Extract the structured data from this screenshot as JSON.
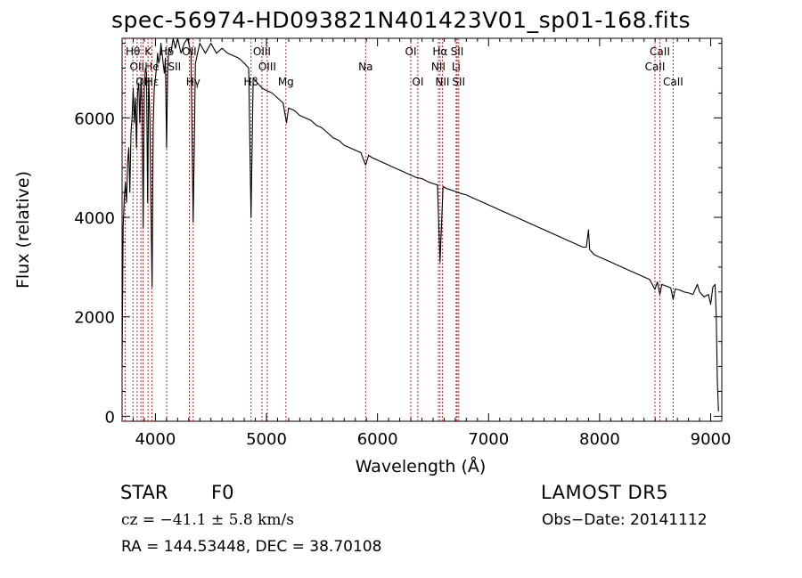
{
  "chart_data": {
    "type": "line",
    "title": "spec-56974-HD093821N401423V01_sp01-168.fits",
    "xlabel": "Wavelength (Å)",
    "ylabel": "Flux (relative)",
    "xlim": [
      3700,
      9100
    ],
    "ylim": [
      -100,
      7600
    ],
    "x_ticks": [
      "4000",
      "5000",
      "6000",
      "7000",
      "8000",
      "9000"
    ],
    "y_ticks": [
      "0",
      "2000",
      "4000",
      "6000"
    ],
    "grid": false,
    "series": [
      {
        "values": [
          [
            3700,
            1000
          ],
          [
            3710,
            3800
          ],
          [
            3720,
            4400
          ],
          [
            3730,
            4700
          ],
          [
            3740,
            4300
          ],
          [
            3750,
            5100
          ],
          [
            3760,
            5400
          ],
          [
            3770,
            4500
          ],
          [
            3780,
            5700
          ],
          [
            3790,
            6000
          ],
          [
            3800,
            6600
          ],
          [
            3810,
            5900
          ],
          [
            3820,
            6400
          ],
          [
            3830,
            5400
          ],
          [
            3840,
            6500
          ],
          [
            3850,
            6700
          ],
          [
            3860,
            5900
          ],
          [
            3870,
            6800
          ],
          [
            3880,
            6300
          ],
          [
            3890,
            3800
          ],
          [
            3900,
            6600
          ],
          [
            3910,
            7000
          ],
          [
            3920,
            6900
          ],
          [
            3930,
            4300
          ],
          [
            3940,
            6800
          ],
          [
            3950,
            6000
          ],
          [
            3960,
            4200
          ],
          [
            3970,
            2600
          ],
          [
            3980,
            5800
          ],
          [
            3990,
            6600
          ],
          [
            4000,
            6800
          ],
          [
            4010,
            7000
          ],
          [
            4020,
            7300
          ],
          [
            4030,
            7100
          ],
          [
            4040,
            7200
          ],
          [
            4050,
            7500
          ],
          [
            4060,
            7300
          ],
          [
            4070,
            7100
          ],
          [
            4080,
            6900
          ],
          [
            4090,
            7200
          ],
          [
            4100,
            5400
          ],
          [
            4110,
            6900
          ],
          [
            4120,
            7400
          ],
          [
            4140,
            7300
          ],
          [
            4160,
            7600
          ],
          [
            4180,
            7400
          ],
          [
            4200,
            7600
          ],
          [
            4230,
            7300
          ],
          [
            4260,
            7500
          ],
          [
            4290,
            7600
          ],
          [
            4320,
            7300
          ],
          [
            4340,
            3900
          ],
          [
            4360,
            7100
          ],
          [
            4400,
            7500
          ],
          [
            4450,
            7300
          ],
          [
            4500,
            7500
          ],
          [
            4550,
            7300
          ],
          [
            4600,
            7400
          ],
          [
            4650,
            7300
          ],
          [
            4700,
            7250
          ],
          [
            4750,
            7200
          ],
          [
            4800,
            7100
          ],
          [
            4840,
            7000
          ],
          [
            4861,
            4000
          ],
          [
            4880,
            6800
          ],
          [
            4920,
            6700
          ],
          [
            4960,
            6600
          ],
          [
            5000,
            6550
          ],
          [
            5050,
            6500
          ],
          [
            5100,
            6400
          ],
          [
            5150,
            6300
          ],
          [
            5180,
            5900
          ],
          [
            5200,
            6200
          ],
          [
            5250,
            6150
          ],
          [
            5300,
            6050
          ],
          [
            5350,
            6000
          ],
          [
            5400,
            5950
          ],
          [
            5450,
            5850
          ],
          [
            5500,
            5800
          ],
          [
            5550,
            5700
          ],
          [
            5600,
            5600
          ],
          [
            5650,
            5550
          ],
          [
            5700,
            5450
          ],
          [
            5750,
            5400
          ],
          [
            5800,
            5350
          ],
          [
            5850,
            5300
          ],
          [
            5893,
            5050
          ],
          [
            5920,
            5250
          ],
          [
            5950,
            5200
          ],
          [
            6000,
            5150
          ],
          [
            6050,
            5100
          ],
          [
            6100,
            5050
          ],
          [
            6150,
            5000
          ],
          [
            6200,
            4950
          ],
          [
            6250,
            4900
          ],
          [
            6300,
            4850
          ],
          [
            6350,
            4800
          ],
          [
            6400,
            4780
          ],
          [
            6450,
            4720
          ],
          [
            6500,
            4680
          ],
          [
            6540,
            4650
          ],
          [
            6563,
            3100
          ],
          [
            6590,
            4620
          ],
          [
            6620,
            4580
          ],
          [
            6650,
            4560
          ],
          [
            6700,
            4520
          ],
          [
            6750,
            4480
          ],
          [
            6800,
            4450
          ],
          [
            6850,
            4400
          ],
          [
            6900,
            4350
          ],
          [
            6950,
            4300
          ],
          [
            7000,
            4250
          ],
          [
            7050,
            4200
          ],
          [
            7100,
            4150
          ],
          [
            7150,
            4100
          ],
          [
            7200,
            4050
          ],
          [
            7250,
            4000
          ],
          [
            7300,
            3950
          ],
          [
            7350,
            3900
          ],
          [
            7400,
            3850
          ],
          [
            7450,
            3800
          ],
          [
            7500,
            3750
          ],
          [
            7550,
            3700
          ],
          [
            7600,
            3650
          ],
          [
            7650,
            3600
          ],
          [
            7700,
            3550
          ],
          [
            7750,
            3500
          ],
          [
            7800,
            3450
          ],
          [
            7850,
            3400
          ],
          [
            7880,
            3400
          ],
          [
            7900,
            3750
          ],
          [
            7910,
            3350
          ],
          [
            7950,
            3250
          ],
          [
            8000,
            3200
          ],
          [
            8050,
            3150
          ],
          [
            8100,
            3100
          ],
          [
            8150,
            3050
          ],
          [
            8200,
            3000
          ],
          [
            8250,
            2950
          ],
          [
            8300,
            2900
          ],
          [
            8350,
            2850
          ],
          [
            8400,
            2800
          ],
          [
            8450,
            2750
          ],
          [
            8498,
            2550
          ],
          [
            8520,
            2700
          ],
          [
            8542,
            2450
          ],
          [
            8560,
            2650
          ],
          [
            8600,
            2620
          ],
          [
            8640,
            2580
          ],
          [
            8662,
            2350
          ],
          [
            8680,
            2560
          ],
          [
            8720,
            2540
          ],
          [
            8760,
            2500
          ],
          [
            8800,
            2480
          ],
          [
            8840,
            2450
          ],
          [
            8880,
            2650
          ],
          [
            8900,
            2500
          ],
          [
            8940,
            2400
          ],
          [
            8980,
            2450
          ],
          [
            9000,
            2250
          ],
          [
            9020,
            2600
          ],
          [
            9040,
            2650
          ],
          [
            9050,
            2000
          ],
          [
            9060,
            700
          ],
          [
            9070,
            100
          ]
        ]
      }
    ],
    "line_labels": [
      {
        "wavelength": 3798,
        "row": 1,
        "text": "Hθ"
      },
      {
        "wavelength": 3835,
        "row": 2,
        "text": "OII"
      },
      {
        "wavelength": 3889,
        "row": 3,
        "text": "OII"
      },
      {
        "wavelength": 3934,
        "row": 1,
        "text": "K"
      },
      {
        "wavelength": 3968,
        "row": 2,
        "text": "He"
      },
      {
        "wavelength": 3970,
        "row": 3,
        "text": "Hε"
      },
      {
        "wavelength": 4102,
        "row": 1,
        "text": "Hδ"
      },
      {
        "wavelength": 4172,
        "row": 2,
        "text": "SII"
      },
      {
        "wavelength": 4305,
        "row": 1,
        "text": "OII"
      },
      {
        "wavelength": 4340,
        "row": 3,
        "text": "Hγ"
      },
      {
        "wavelength": 4861,
        "row": 3,
        "text": "Hβ"
      },
      {
        "wavelength": 4959,
        "row": 1,
        "text": "OIII"
      },
      {
        "wavelength": 5007,
        "row": 2,
        "text": "OIII"
      },
      {
        "wavelength": 5175,
        "row": 3,
        "text": "Mg"
      },
      {
        "wavelength": 5893,
        "row": 2,
        "text": "Na"
      },
      {
        "wavelength": 6300,
        "row": 1,
        "text": "OI"
      },
      {
        "wavelength": 6363,
        "row": 3,
        "text": "OI"
      },
      {
        "wavelength": 6563,
        "row": 1,
        "text": "Hα"
      },
      {
        "wavelength": 6548,
        "row": 2,
        "text": "NII"
      },
      {
        "wavelength": 6584,
        "row": 3,
        "text": "NII"
      },
      {
        "wavelength": 6717,
        "row": 1,
        "text": "SII"
      },
      {
        "wavelength": 6708,
        "row": 2,
        "text": "Li"
      },
      {
        "wavelength": 6731,
        "row": 3,
        "text": "SII"
      },
      {
        "wavelength": 8542,
        "row": 1,
        "text": "CaII"
      },
      {
        "wavelength": 8498,
        "row": 2,
        "text": "CaII"
      },
      {
        "wavelength": 8662,
        "row": 3,
        "text": "CaII"
      }
    ],
    "line_markers": [
      3727,
      3798,
      3835,
      3869,
      3889,
      3934,
      3968,
      4102,
      4306,
      4340,
      4861,
      4959,
      5007,
      5175,
      5893,
      6300,
      6363,
      6548,
      6563,
      6584,
      6708,
      6717,
      6731,
      8498,
      8542,
      8662
    ],
    "marker_color": "#d02020"
  },
  "info": {
    "class_label": "STAR",
    "subclass": "F0",
    "survey": "LAMOST DR5",
    "cz": "cz = −41.1 ± 5.8 km/s",
    "obs_date": "Obs−Date: 20141112",
    "coords": "RA = 144.53448, DEC =  38.70108"
  }
}
